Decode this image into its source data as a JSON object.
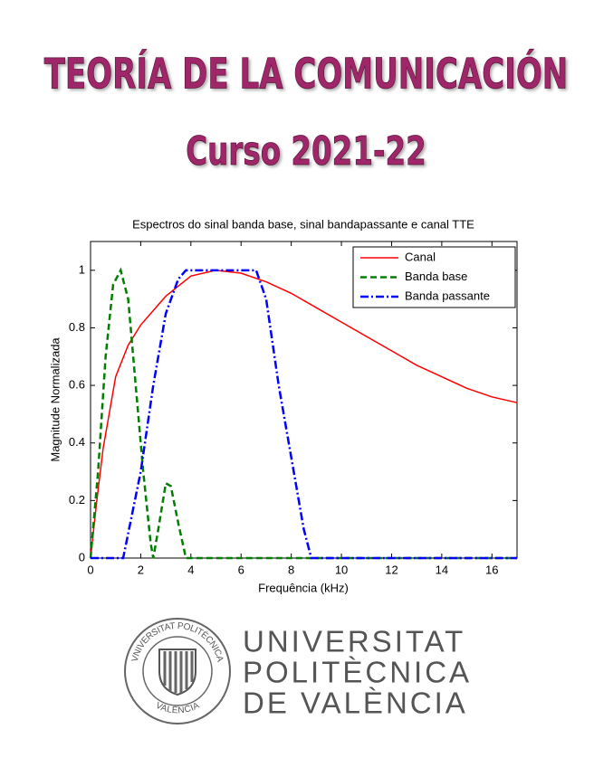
{
  "header": {
    "title": "TEORÍA DE LA COMUNICACIÓN",
    "subtitle": "Curso 2021-22"
  },
  "chart_data": {
    "type": "line",
    "title": "Espectros do sinal banda base, sinal bandapassante e canal TTE",
    "x_label": "Frequência (kHz)",
    "y_label": "Magnitude Normalizada",
    "xlim": [
      0,
      17
    ],
    "ylim": [
      0,
      1.1
    ],
    "xticks": [
      0,
      2,
      4,
      6,
      8,
      10,
      12,
      14,
      16
    ],
    "yticks": [
      0,
      0.2,
      0.4,
      0.6,
      0.8,
      1
    ],
    "legend": "upper right",
    "series": [
      {
        "name": "Canal",
        "color": "#ff0000",
        "style": "solid",
        "x": [
          0,
          0.25,
          0.5,
          1,
          1.5,
          2,
          3,
          4,
          5,
          6,
          7,
          8,
          9,
          10,
          11,
          12,
          13,
          14,
          15,
          16,
          17
        ],
        "values": [
          0,
          0.2,
          0.38,
          0.63,
          0.74,
          0.81,
          0.91,
          0.98,
          1.0,
          0.99,
          0.96,
          0.92,
          0.87,
          0.82,
          0.77,
          0.72,
          0.67,
          0.63,
          0.59,
          0.56,
          0.54
        ]
      },
      {
        "name": "Banda base",
        "color": "#008000",
        "style": "dashed",
        "x": [
          0,
          0.3,
          0.6,
          0.9,
          1.2,
          1.5,
          1.8,
          2.1,
          2.4,
          2.5,
          2.7,
          3.0,
          3.2,
          3.5,
          3.8,
          17
        ],
        "values": [
          0,
          0.3,
          0.7,
          0.95,
          1.0,
          0.9,
          0.6,
          0.3,
          0.05,
          0,
          0.1,
          0.26,
          0.25,
          0.12,
          0,
          0
        ]
      },
      {
        "name": "Banda passante",
        "color": "#0000ff",
        "style": "dashdot",
        "x": [
          0,
          1.3,
          2,
          2.5,
          3,
          3.5,
          3.8,
          6.6,
          7,
          7.5,
          8,
          8.5,
          8.8,
          17
        ],
        "values": [
          0,
          0,
          0.3,
          0.6,
          0.85,
          0.97,
          1,
          1,
          0.9,
          0.6,
          0.35,
          0.1,
          0,
          0
        ]
      }
    ]
  },
  "logo": {
    "seal_top": "VNIVERSITAT POLITÈCNICA",
    "seal_bottom": "VALÈNCIA",
    "name_lines": [
      "UNIVERSITAT",
      "POLITÈCNICA",
      "DE VALÈNCIA"
    ]
  }
}
